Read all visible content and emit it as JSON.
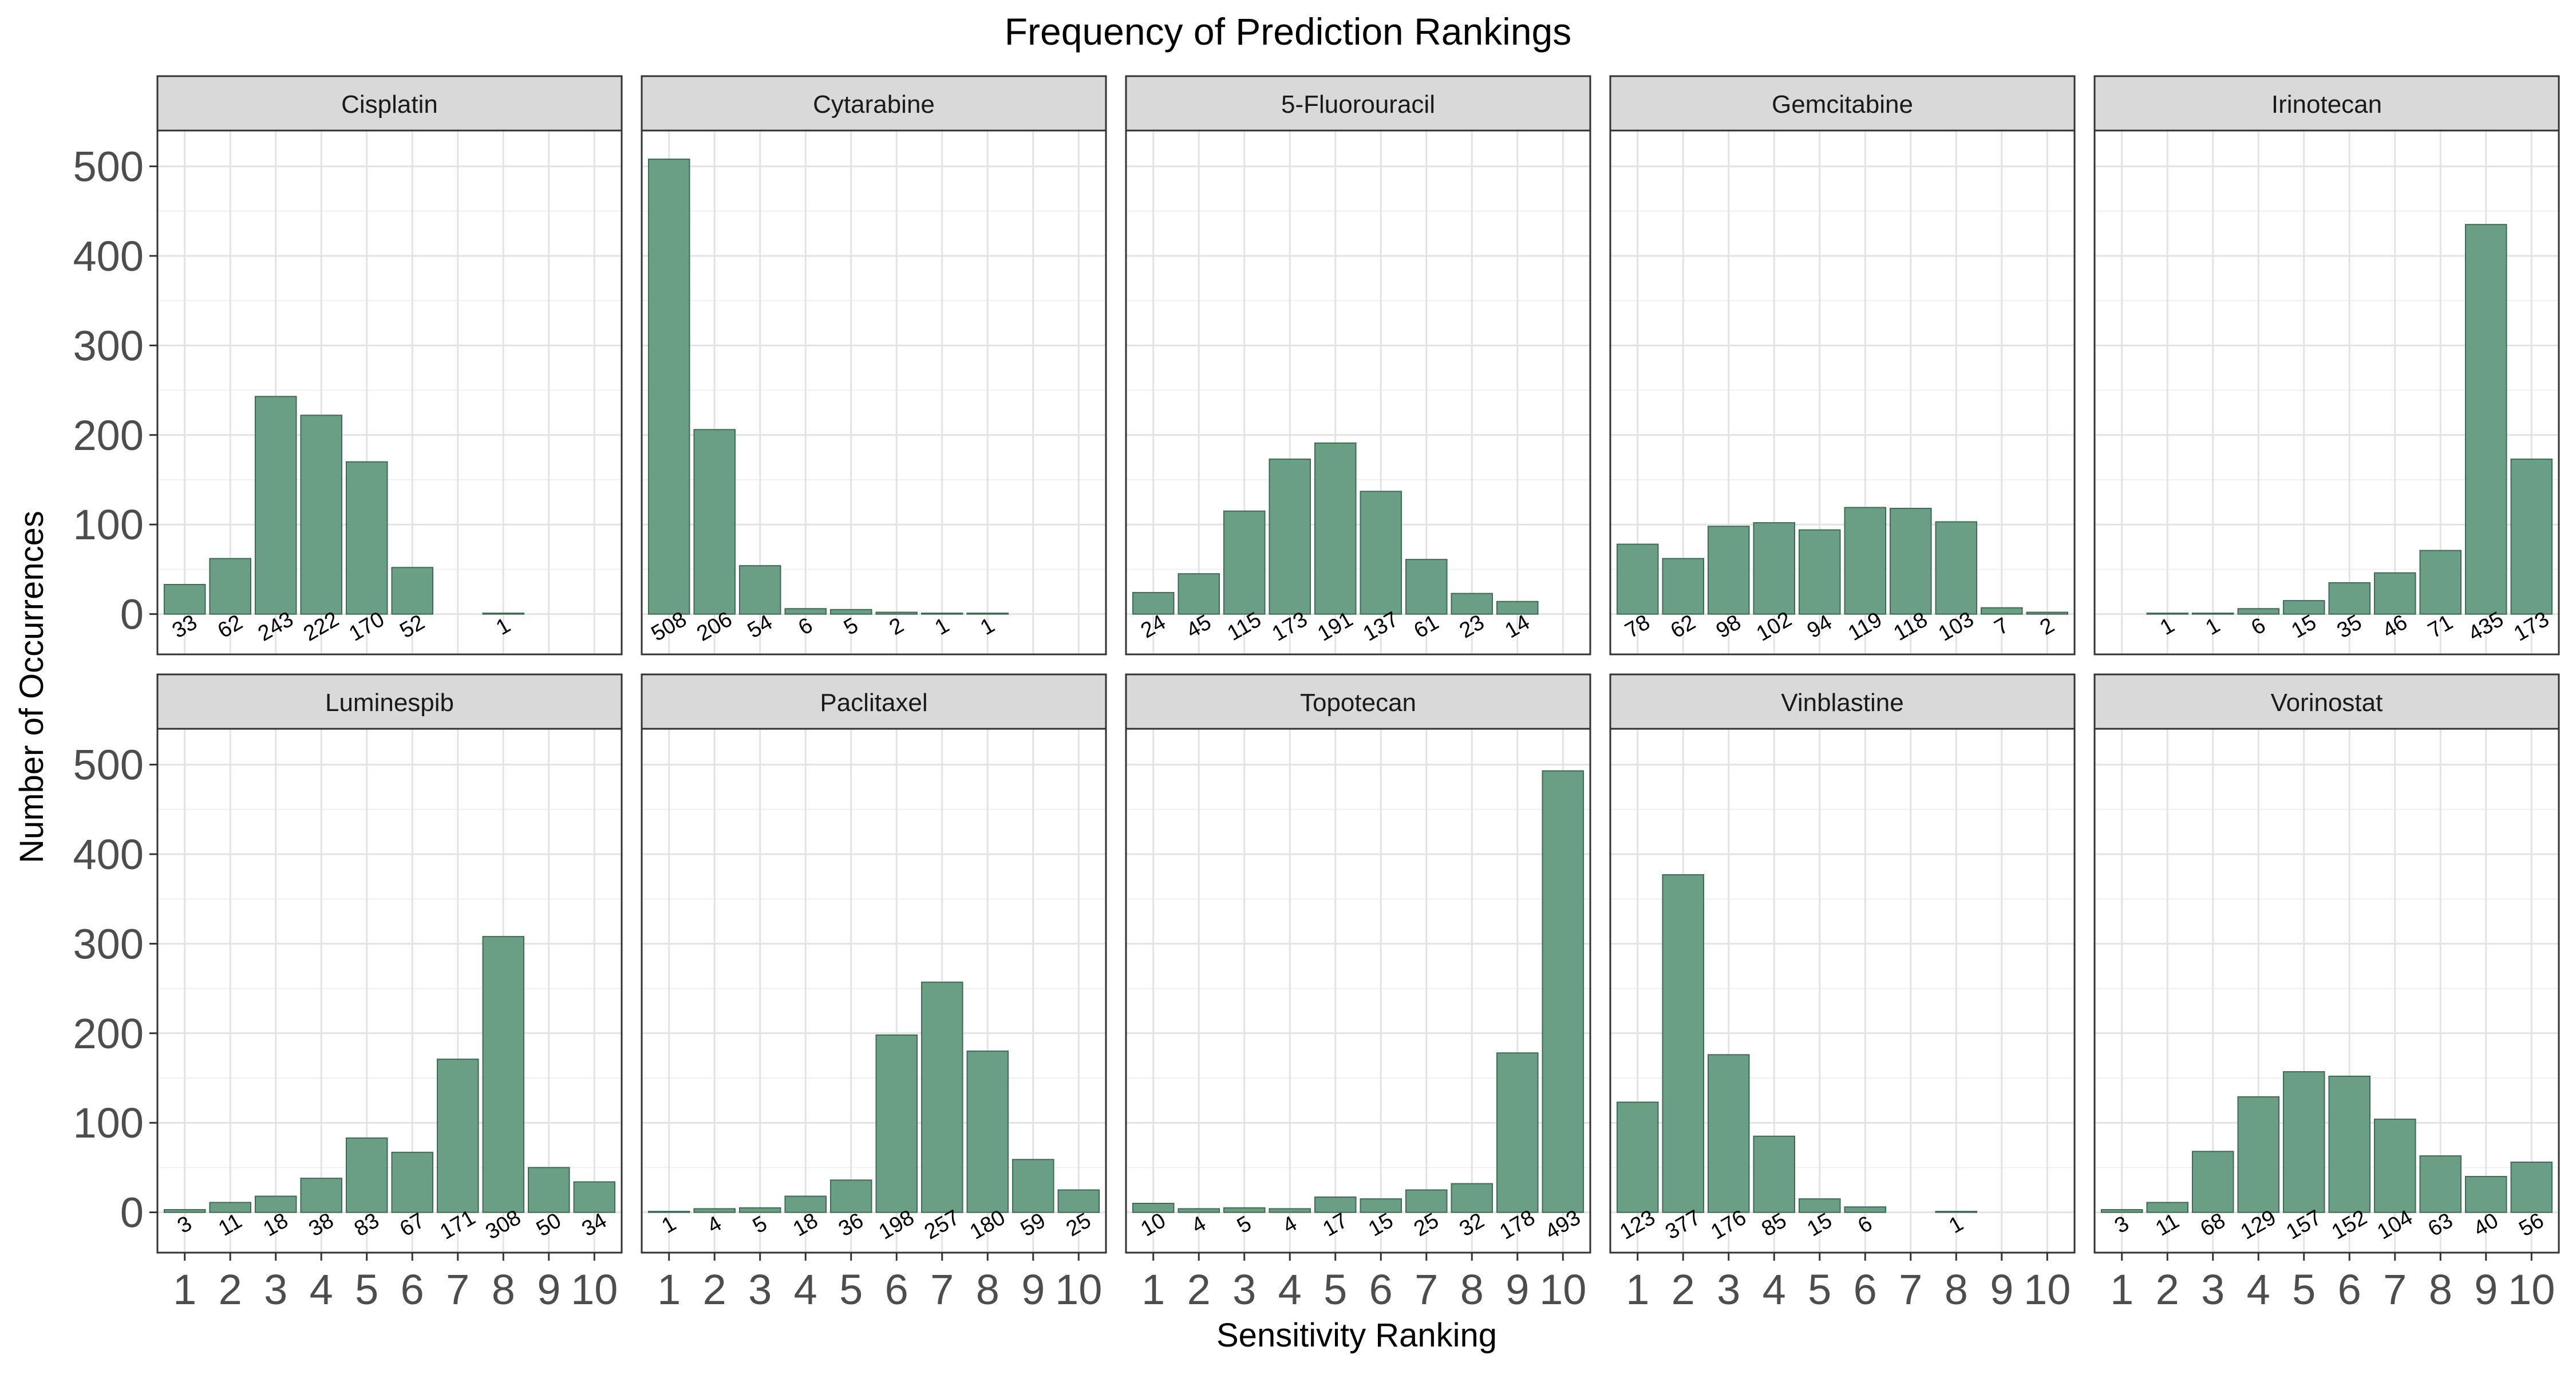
{
  "chart_data": {
    "type": "bar",
    "title": "Frequency of Prediction Rankings",
    "xlabel": "Sensitivity Ranking",
    "ylabel": "Number of Occurrences",
    "categories": [
      "1",
      "2",
      "3",
      "4",
      "5",
      "6",
      "7",
      "8",
      "9",
      "10"
    ],
    "ylim": [
      -45,
      540
    ],
    "yticks": [
      0,
      100,
      200,
      300,
      400,
      500
    ],
    "grid": true,
    "bar_color": "#6b9f85",
    "strip_color": "#d9d9d9",
    "panels": [
      {
        "name": "Cisplatin",
        "values": [
          33,
          62,
          243,
          222,
          170,
          52,
          0,
          1,
          0,
          0
        ],
        "labels": [
          "33",
          "62",
          "243",
          "222",
          "170",
          "52",
          "",
          "1",
          "",
          ""
        ]
      },
      {
        "name": "Cytarabine",
        "values": [
          508,
          206,
          54,
          6,
          5,
          2,
          1,
          1,
          0,
          0
        ],
        "labels": [
          "508",
          "206",
          "54",
          "6",
          "5",
          "2",
          "1",
          "1",
          "",
          ""
        ]
      },
      {
        "name": "5-Fluorouracil",
        "values": [
          24,
          45,
          115,
          173,
          191,
          137,
          61,
          23,
          14,
          0
        ],
        "labels": [
          "24",
          "45",
          "115",
          "173",
          "191",
          "137",
          "61",
          "23",
          "14",
          ""
        ]
      },
      {
        "name": "Gemcitabine",
        "values": [
          78,
          62,
          98,
          102,
          94,
          119,
          118,
          103,
          7,
          2
        ],
        "labels": [
          "78",
          "62",
          "98",
          "102",
          "94",
          "119",
          "118",
          "103",
          "7",
          "2"
        ]
      },
      {
        "name": "Irinotecan",
        "values": [
          0,
          1,
          1,
          6,
          15,
          35,
          46,
          71,
          435,
          173
        ],
        "labels": [
          "",
          "1",
          "1",
          "6",
          "15",
          "35",
          "46",
          "71",
          "435",
          "173"
        ]
      },
      {
        "name": "Luminespib",
        "values": [
          3,
          11,
          18,
          38,
          83,
          67,
          171,
          308,
          50,
          34
        ],
        "labels": [
          "3",
          "11",
          "18",
          "38",
          "83",
          "67",
          "171",
          "308",
          "50",
          "34"
        ]
      },
      {
        "name": "Paclitaxel",
        "values": [
          1,
          4,
          5,
          18,
          36,
          198,
          257,
          180,
          59,
          25
        ],
        "labels": [
          "1",
          "4",
          "5",
          "18",
          "36",
          "198",
          "257",
          "180",
          "59",
          "25"
        ]
      },
      {
        "name": "Topotecan",
        "values": [
          10,
          4,
          5,
          4,
          17,
          15,
          25,
          32,
          178,
          493
        ],
        "labels": [
          "10",
          "4",
          "5",
          "4",
          "17",
          "15",
          "25",
          "32",
          "178",
          "493"
        ]
      },
      {
        "name": "Vinblastine",
        "values": [
          123,
          377,
          176,
          85,
          15,
          6,
          0,
          1,
          0,
          0
        ],
        "labels": [
          "123",
          "377",
          "176",
          "85",
          "15",
          "6",
          "",
          "1",
          "",
          ""
        ]
      },
      {
        "name": "Vorinostat",
        "values": [
          3,
          11,
          68,
          129,
          157,
          152,
          104,
          63,
          40,
          56
        ],
        "labels": [
          "3",
          "11",
          "68",
          "129",
          "157",
          "152",
          "104",
          "63",
          "40",
          "56"
        ]
      }
    ]
  }
}
